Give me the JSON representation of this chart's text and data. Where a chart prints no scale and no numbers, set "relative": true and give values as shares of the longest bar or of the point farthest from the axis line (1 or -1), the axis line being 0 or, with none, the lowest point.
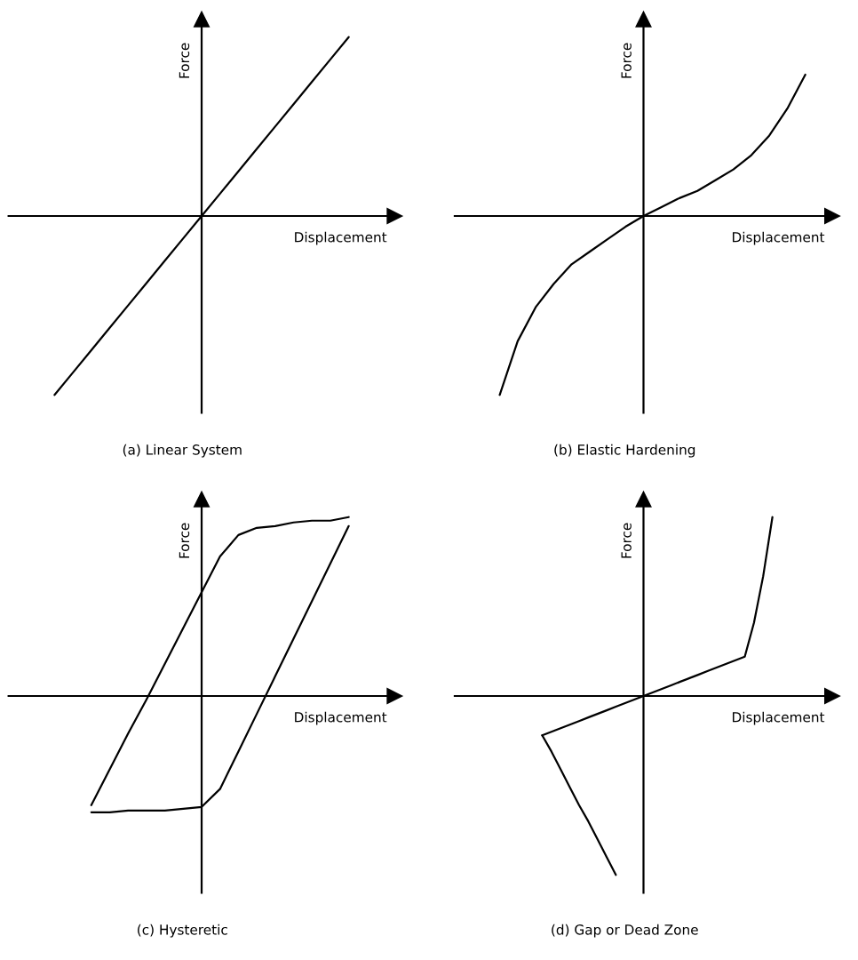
{
  "chart_data": [
    {
      "type": "line",
      "relative": true,
      "title": "(a) Linear System",
      "xlabel": "Displacement",
      "ylabel": "Force",
      "categories": [
        null,
        null,
        null,
        null,
        null,
        null,
        null,
        null,
        null,
        null,
        null,
        null,
        null,
        null,
        null,
        null,
        null,
        null,
        null,
        null,
        null
      ],
      "series": [
        {
          "color": "#000000",
          "values": [
            null,
            null,
            -1,
            -0.875,
            -0.75,
            -0.625,
            -0.5,
            -0.375,
            -0.25,
            -0.125,
            0,
            0.125,
            0.25,
            0.375,
            0.5,
            0.625,
            0.75,
            0.875,
            1,
            null,
            null
          ]
        }
      ]
    },
    {
      "type": "line",
      "relative": true,
      "title": "(b) Elastic Hardening",
      "xlabel": "Displacement",
      "ylabel": "Force",
      "categories": [
        null,
        null,
        null,
        null,
        null,
        null,
        null,
        null,
        null,
        null,
        null,
        null,
        null,
        null,
        null,
        null,
        null,
        null,
        null,
        null,
        null
      ],
      "series": [
        {
          "color": "#000000",
          "values": [
            null,
            null,
            -1,
            -0.7,
            -0.51,
            -0.38,
            -0.27,
            -0.2,
            -0.13,
            -0.06,
            0,
            0.05,
            0.1,
            0.14,
            0.2,
            0.26,
            0.34,
            0.45,
            0.6,
            0.79,
            null
          ]
        }
      ]
    },
    {
      "type": "line",
      "relative": true,
      "title": "(c) Hysteretic",
      "xlabel": "Displacement",
      "ylabel": "Force",
      "categories": [
        null,
        null,
        null,
        null,
        null,
        null,
        null,
        null,
        null,
        null,
        null,
        null,
        null,
        null,
        null,
        null,
        null,
        null,
        null,
        null,
        null
      ],
      "series": [
        {
          "color": "#000000",
          "values": [
            null,
            null,
            null,
            null,
            -0.61,
            -0.41,
            -0.21,
            -0.02,
            0.18,
            0.38,
            0.58,
            0.78,
            0.9,
            0.94,
            0.95,
            0.97,
            0.98,
            0.98,
            1,
            null,
            null
          ]
        },
        {
          "color": "#000000",
          "values": [
            null,
            null,
            null,
            null,
            -0.65,
            -0.65,
            -0.64,
            -0.64,
            -0.64,
            -0.63,
            -0.62,
            -0.52,
            -0.31,
            -0.1,
            0.11,
            0.32,
            0.53,
            0.74,
            0.95,
            null,
            null
          ]
        }
      ]
    },
    {
      "type": "line",
      "relative": true,
      "title": "(d) Gap or Dead Zone",
      "xlabel": "Displacement",
      "ylabel": "Force",
      "categories": [
        null,
        null,
        null,
        null,
        null,
        null,
        null,
        null,
        null,
        null,
        null,
        null,
        null,
        null,
        null,
        null,
        null,
        null,
        null,
        null,
        null,
        null,
        null,
        null,
        null,
        null,
        null,
        null,
        null,
        null,
        null,
        null,
        null,
        null,
        null,
        null,
        null,
        null,
        null,
        null,
        null
      ],
      "series": [
        {
          "color": "#000000",
          "values": [
            null,
            null,
            null,
            null,
            null,
            null,
            null,
            null,
            null,
            -0.22,
            -0.31,
            -0.41,
            -0.51,
            -0.61,
            -0.7,
            -0.8,
            -0.9,
            -1,
            null,
            null,
            null,
            null,
            null,
            null,
            null,
            null,
            null,
            null,
            null,
            null,
            null,
            null,
            null,
            null,
            null,
            null,
            null,
            null,
            null,
            null,
            null
          ]
        },
        {
          "color": "#000000",
          "values": [
            null,
            null,
            null,
            null,
            null,
            null,
            null,
            null,
            null,
            -0.22,
            -0.2,
            -0.18,
            -0.16,
            -0.14,
            -0.12,
            -0.1,
            -0.08,
            -0.06,
            -0.04,
            -0.02,
            0,
            0.02,
            0.04,
            0.06,
            0.08,
            0.1,
            0.12,
            0.14,
            0.16,
            0.18,
            0.2,
            0.22,
            0.41,
            0.67,
            1,
            null,
            null,
            null,
            null,
            null,
            null
          ]
        }
      ]
    }
  ]
}
